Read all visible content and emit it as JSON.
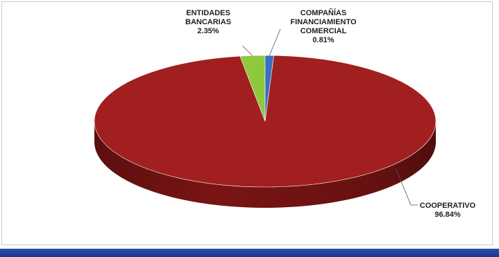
{
  "chart_data": {
    "type": "pie",
    "style": "3d",
    "slices": [
      {
        "name_lines": [
          "COOPERATIVO"
        ],
        "value": 96.84,
        "value_label": "96.84%",
        "color": "#a11f1f",
        "side_color": "#7a1414"
      },
      {
        "name_lines": [
          "ENTIDADES",
          "BANCARIAS"
        ],
        "value": 2.35,
        "value_label": "2.35%",
        "color": "#8fc83c",
        "side_color": "#5f8a22"
      },
      {
        "name_lines": [
          "COMPAÑÍAS",
          "FINANCIAMIENTO",
          "COMERCIAL"
        ],
        "value": 0.81,
        "value_label": "0.81%",
        "color": "#3a6fc4",
        "side_color": "#244b8a"
      }
    ]
  },
  "colors": {
    "bottom_bar": "#243f9e",
    "frame_border": "#c8c8c8"
  }
}
